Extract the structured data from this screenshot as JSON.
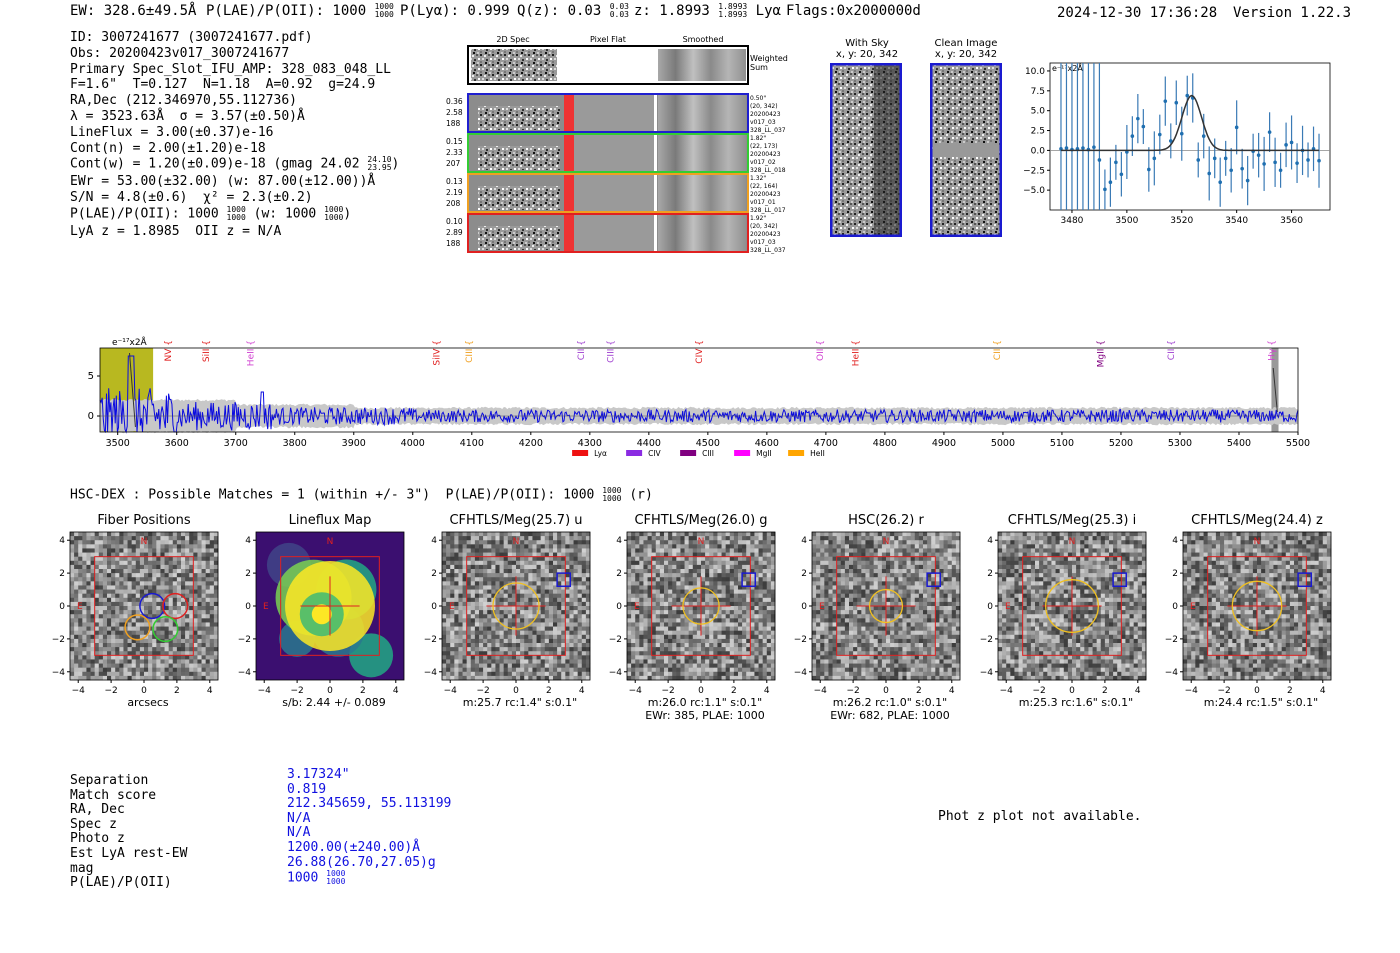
{
  "header": {
    "ew": "EW: 328.6±49.5Å",
    "plae_prefix": "P(LAE)/P(OII): 1000",
    "plae_hi": "1000",
    "plae_lo": "1000",
    "plya": "P(Lyα): 0.999",
    "qz_prefix": "Q(z): 0.03",
    "qz_hi": "0.03",
    "qz_lo": "0.03",
    "z_prefix": "z: 1.8993",
    "z_hi": "1.8993",
    "z_lo": "1.8993",
    "z_line": "Lyα",
    "flags": "Flags:0x2000000d",
    "datetime": "2024-12-30 17:36:28",
    "version": "Version 1.22.3"
  },
  "info": {
    "lines": [
      "ID: 3007241677 (3007241677.pdf)",
      "Obs: 20200423v017_3007241677",
      "Primary Spec_Slot_IFU_AMP: 328_083_048_LL",
      "F=1.6\"  T=0.127  N=1.18  A=0.92  g=24.9",
      "RA,Dec (212.346970,55.112736)",
      "λ = 3523.63Å  σ = 3.57(±0.50)Å",
      "LineFlux = 3.00(±0.37)e-16",
      "Cont(n) = 2.00(±1.20)e-18"
    ],
    "contw_prefix": "Cont(w) = 1.20(±0.09)e-18 (gmag 24.02",
    "contw_hi": "24.10",
    "contw_lo": "23.95",
    "ewr": "EWr = 53.00(±32.00) (w: 87.00(±12.00))Å",
    "sn": "S/N = 4.8(±0.6)  χ² = 2.3(±0.2)",
    "plae_prefix": "P(LAE)/P(OII): 1000",
    "plae_hi": "1000",
    "plae_lo": "1000",
    "plae_w_prefix": "(w: 1000",
    "plae_w_hi": "1000",
    "plae_w_lo": "1000",
    "lyaz": "LyA z = 1.8985  OII z = N/A"
  },
  "fiber_panel": {
    "col_titles": [
      "2D Spec",
      "Pixel Flat",
      "Smoothed"
    ],
    "weighted_label": "Weighted Sum",
    "rows": [
      {
        "left": [
          "0.36",
          "2.58",
          "188"
        ],
        "right": [
          "0.50\"",
          "(20, 342)",
          "20200423",
          "v017_03",
          "328_LL_037"
        ],
        "color": "#1f1fd0"
      },
      {
        "left": [
          "0.15",
          "2.33",
          "207"
        ],
        "right": [
          "1.82\"",
          "(22, 173)",
          "20200423",
          "v017_02",
          "328_LL_018"
        ],
        "color": "#33cc33"
      },
      {
        "left": [
          "0.13",
          "2.19",
          "208"
        ],
        "right": [
          "1.32\"",
          "(22, 164)",
          "20200423",
          "v017_01",
          "328_LL_017"
        ],
        "color": "#f0a020"
      },
      {
        "left": [
          "0.10",
          "2.89",
          "188"
        ],
        "right": [
          "1.92\"",
          "(20, 342)",
          "20200423",
          "v017_03",
          "328_LL_037"
        ],
        "color": "#e02020"
      }
    ]
  },
  "sky_panels": {
    "with_sky_title": "With Sky",
    "with_sky_coord": "x, y: 20, 342",
    "clean_title": "Clean Image",
    "clean_coord": "x, y: 20, 342"
  },
  "zoom_plot": {
    "unit_label": "e⁻¹⁷x2Å",
    "y_ticks": [
      "10.0",
      "7.5",
      "5.0",
      "2.5",
      "0.0",
      "−2.5",
      "−5.0"
    ],
    "x_ticks": [
      "3480",
      "3500",
      "3520",
      "3540",
      "3560"
    ]
  },
  "full_spectrum": {
    "unit_label": "e⁻¹⁷x2Å",
    "y_ticks": [
      "5",
      "0"
    ],
    "x_ticks": [
      "3500",
      "3600",
      "3700",
      "3800",
      "3900",
      "4000",
      "4100",
      "4200",
      "4300",
      "4400",
      "4500",
      "4600",
      "4700",
      "4800",
      "4900",
      "5000",
      "5100",
      "5200",
      "5300",
      "5400",
      "5500"
    ],
    "lines": [
      {
        "label": "NV",
        "wave": 3590,
        "color": "#e02020"
      },
      {
        "label": "SiII",
        "wave": 3655,
        "color": "#e02020"
      },
      {
        "label": "HeII",
        "wave": 3730,
        "color": "#d040d0"
      },
      {
        "label": "SiIV",
        "wave": 4045,
        "color": "#e02020"
      },
      {
        "label": "CIII",
        "wave": 4100,
        "color": "#f0a020"
      },
      {
        "label": "CII",
        "wave": 4290,
        "color": "#a040d0"
      },
      {
        "label": "CIII",
        "wave": 4340,
        "color": "#a040d0"
      },
      {
        "label": "CIV",
        "wave": 4490,
        "color": "#e02020"
      },
      {
        "label": "OII",
        "wave": 4695,
        "color": "#d040d0"
      },
      {
        "label": "HeII",
        "wave": 4755,
        "color": "#e02020"
      },
      {
        "label": "CII",
        "wave": 4995,
        "color": "#f0a020"
      },
      {
        "label": "MgII",
        "wave": 5170,
        "color": "#800080"
      },
      {
        "label": "CII",
        "wave": 5290,
        "color": "#a040d0"
      },
      {
        "label": "Hγ",
        "wave": 5460,
        "color": "#d040d0"
      }
    ],
    "legend": [
      {
        "label": "Lyα",
        "color": "#ee1111"
      },
      {
        "label": "CIV",
        "color": "#8a2be2"
      },
      {
        "label": "CIII",
        "color": "#800080"
      },
      {
        "label": "MgII",
        "color": "#ff00ff"
      },
      {
        "label": "HeII",
        "color": "#ffa500"
      }
    ]
  },
  "hsc": {
    "title_prefix": "HSC-DEX : Possible Matches = 1 (within +/- 3\")  P(LAE)/P(OII): 1000",
    "title_hi": "1000",
    "title_lo": "1000",
    "title_suffix": "(r)"
  },
  "cutouts": [
    {
      "title": "Fiber Positions",
      "cap1": "arcsecs",
      "cap2": "",
      "kind": "fiber"
    },
    {
      "title": "Lineflux Map",
      "cap1": "s/b: 2.44 +/- 0.089",
      "cap2": "",
      "kind": "flux"
    },
    {
      "title": "CFHTLS/Meg(25.7) u",
      "cap1": "m:25.7 rc:1.4\"  s:0.1\"",
      "cap2": "",
      "kind": "img",
      "circle_r": 1.4
    },
    {
      "title": "CFHTLS/Meg(26.0) g",
      "cap1": "m:26.0 rc:1.1\"  s:0.1\"",
      "cap2": "EWr: 385, PLAE: 1000",
      "kind": "img",
      "circle_r": 1.1
    },
    {
      "title": "HSC(26.2) r",
      "cap1": "m:26.2 rc:1.0\"  s:0.1\"",
      "cap2": "EWr: 682, PLAE: 1000",
      "kind": "img",
      "circle_r": 1.0
    },
    {
      "title": "CFHTLS/Meg(25.3) i",
      "cap1": "m:25.3 rc:1.6\"  s:0.1\"",
      "cap2": "",
      "kind": "img",
      "circle_r": 1.6
    },
    {
      "title": "CFHTLS/Meg(24.4) z",
      "cap1": "m:24.4 rc:1.5\"  s:0.1\"",
      "cap2": "",
      "kind": "img",
      "circle_r": 1.5
    }
  ],
  "cutout_axis": {
    "ticks": [
      "−4",
      "−2",
      "0",
      "2",
      "4"
    ],
    "north": "N",
    "east": "E"
  },
  "match": {
    "labels": [
      "Separation",
      "Match score",
      "RA, Dec",
      "Spec z",
      "Photo z",
      "Est LyA rest-EW",
      "mag"
    ],
    "values": [
      "3.17324\"",
      "0.819",
      "212.345659, 55.113199",
      "N/A",
      "N/A",
      "1200.00(±240.00)Å",
      "26.88(26.70,27.05)g"
    ],
    "plae_label": "P(LAE)/P(OII)",
    "plae_val": "1000",
    "plae_hi": "1000",
    "plae_lo": "1000"
  },
  "photz_note": "Phot z plot not available.",
  "chart_data": [
    {
      "type": "scatter",
      "title": "",
      "xlabel": "",
      "ylabel": "e-17 x2Å",
      "xlim": [
        3472,
        3574
      ],
      "ylim": [
        -7.5,
        11
      ],
      "x": [
        3476,
        3478,
        3480,
        3482,
        3484,
        3486,
        3488,
        3490,
        3492,
        3494,
        3496,
        3498,
        3500,
        3502,
        3504,
        3506,
        3508,
        3510,
        3512,
        3514,
        3516,
        3518,
        3520,
        3522,
        3524,
        3526,
        3528,
        3530,
        3532,
        3534,
        3536,
        3538,
        3540,
        3542,
        3544,
        3546,
        3548,
        3550,
        3552,
        3554,
        3556,
        3558,
        3560,
        3562,
        3564,
        3566,
        3568,
        3570
      ],
      "y": [
        0.2,
        0.3,
        0.1,
        0.2,
        0.3,
        0.1,
        0.4,
        -1.2,
        -4.9,
        -4.0,
        -1.5,
        -3.0,
        -0.2,
        1.8,
        4.0,
        3.0,
        -2.4,
        -1.0,
        2.0,
        6.2,
        1.2,
        6.0,
        2.1,
        6.9,
        6.6,
        -1.2,
        1.8,
        -2.9,
        -1.0,
        -4.0,
        -1.0,
        -2.5,
        2.9,
        -2.3,
        -3.8,
        -0.1,
        -0.6,
        -1.7,
        2.3,
        -1.5,
        -2.5,
        0.7,
        1.0,
        -1.6,
        0.0,
        -1.2,
        0.2,
        -1.3
      ],
      "fit": {
        "amplitude": 6.9,
        "center": 3523.63,
        "sigma": 3.57
      }
    },
    {
      "type": "line",
      "title": "",
      "xlabel": "",
      "ylabel": "e-17 x2Å",
      "xlim": [
        3470,
        5500
      ],
      "ylim": [
        -2,
        8.5
      ],
      "series": [
        {
          "name": "spectrum",
          "color": "#0000dd"
        }
      ],
      "noise_band": 1.0,
      "highlight_ranges": [
        [
          3470,
          3560
        ],
        [
          5455,
          5465
        ]
      ]
    }
  ]
}
